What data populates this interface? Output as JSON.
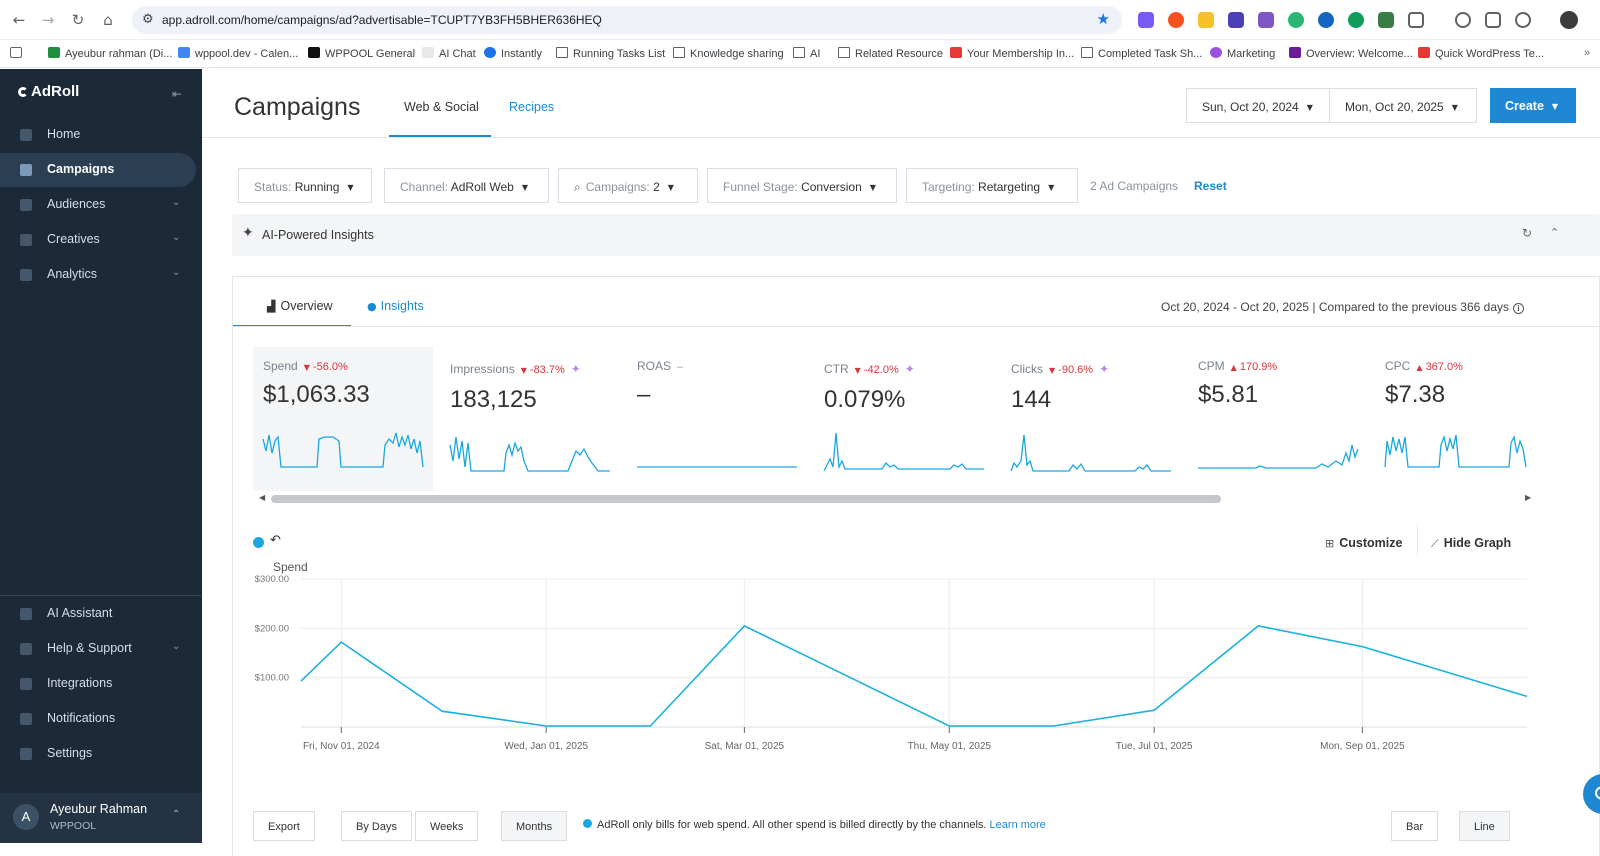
{
  "browser": {
    "url": "app.adroll.com/home/campaigns/ad?advertisable=TCUPT7YB3FH5BHER636HEQ",
    "bookmarks": [
      {
        "label": "Ayeubur rahman (Di...",
        "type": "sheet"
      },
      {
        "label": "wppool.dev - Calen...",
        "type": "calendar"
      },
      {
        "label": "WPPOOL General",
        "type": "notion"
      },
      {
        "label": "AI Chat",
        "type": "ai"
      },
      {
        "label": "Instantly",
        "type": "instantly"
      },
      {
        "label": "Running Tasks List",
        "type": "folder"
      },
      {
        "label": "Knowledge sharing",
        "type": "folder"
      },
      {
        "label": "AI",
        "type": "folder"
      },
      {
        "label": "Related Resource",
        "type": "folder"
      },
      {
        "label": "Your Membership In...",
        "type": "site"
      },
      {
        "label": "Completed Task Sh...",
        "type": "folder"
      },
      {
        "label": "Marketing",
        "type": "site"
      },
      {
        "label": "Overview: Welcome...",
        "type": "site"
      },
      {
        "label": "Quick WordPress Te...",
        "type": "site"
      }
    ]
  },
  "sidebar": {
    "brand": "AdRoll",
    "items": [
      {
        "label": "Home",
        "icon": "home-icon",
        "active": false,
        "chevron": false
      },
      {
        "label": "Campaigns",
        "icon": "megaphone-icon",
        "active": true,
        "chevron": false
      },
      {
        "label": "Audiences",
        "icon": "people-icon",
        "active": false,
        "chevron": true
      },
      {
        "label": "Creatives",
        "icon": "grid-icon",
        "active": false,
        "chevron": true
      },
      {
        "label": "Analytics",
        "icon": "analytics-icon",
        "active": false,
        "chevron": true
      }
    ],
    "bottom_items": [
      {
        "label": "AI Assistant",
        "icon": "sparkle-icon",
        "chevron": false
      },
      {
        "label": "Help & Support",
        "icon": "help-icon",
        "chevron": true
      },
      {
        "label": "Integrations",
        "icon": "plug-icon",
        "chevron": false
      },
      {
        "label": "Notifications",
        "icon": "bell-icon",
        "chevron": false
      },
      {
        "label": "Settings",
        "icon": "gear-icon",
        "chevron": false
      }
    ],
    "user": {
      "initial": "A",
      "name": "Ayeubur Rahman",
      "org": "WPPOOL"
    }
  },
  "header": {
    "title": "Campaigns",
    "tabs": [
      {
        "label": "Web & Social",
        "selected": true
      },
      {
        "label": "Recipes",
        "selected": false
      }
    ],
    "date_start": "Sun, Oct 20, 2024",
    "date_end": "Mon, Oct 20, 2025",
    "create_label": "Create"
  },
  "filters": [
    {
      "key": "Status: ",
      "value": "Running"
    },
    {
      "key": "Channel: ",
      "value": "AdRoll Web"
    },
    {
      "key": "Campaigns: ",
      "value": "2"
    },
    {
      "key": "Funnel Stage: ",
      "value": "Conversion"
    },
    {
      "key": "Targeting: ",
      "value": "Retargeting"
    }
  ],
  "filter_count": "2 Ad Campaigns",
  "reset_label": "Reset",
  "ai_insights_label": "AI-Powered Insights",
  "panel": {
    "tabs": [
      {
        "label": "Overview"
      },
      {
        "label": "Insights"
      }
    ],
    "range_text": "Oct 20, 2024 - Oct 20, 2025 | Compared to the previous 366 days"
  },
  "metrics": [
    {
      "name": "Spend",
      "change": "56.0%",
      "dir": "down",
      "value": "$1,063.33",
      "ai": false
    },
    {
      "name": "Impressions",
      "change": "-83.7%",
      "dir": "down",
      "value": "183,125",
      "ai": true
    },
    {
      "name": "ROAS",
      "change": "–",
      "dir": "neutral",
      "value": "–",
      "ai": false
    },
    {
      "name": "CTR",
      "change": "-42.0%",
      "dir": "down",
      "value": "0.079%",
      "ai": true
    },
    {
      "name": "Clicks",
      "change": "-90.6%",
      "dir": "down",
      "value": "144",
      "ai": true
    },
    {
      "name": "CPM",
      "change": "170.9%",
      "dir": "up",
      "value": "$5.81",
      "ai": false
    },
    {
      "name": "CPC",
      "change": "367.0%",
      "dir": "up",
      "value": "$7.38",
      "ai": false
    }
  ],
  "toolbar": {
    "customize_label": "Customize",
    "hide_graph_label": "Hide Graph"
  },
  "chart_data": {
    "type": "line",
    "title": "Spend",
    "y_ticks": [
      "$100.00",
      "$200.00",
      "$300.00"
    ],
    "ylim": [
      0,
      300
    ],
    "x_tick_labels": [
      "Fri, Nov 01, 2024",
      "Wed, Jan 01, 2025",
      "Sat, Mar 01, 2025",
      "Thu, May 01, 2025",
      "Tue, Jul 01, 2025",
      "Mon, Sep 01, 2025"
    ],
    "x": [
      "2024-10-20",
      "2024-11-01",
      "2024-12-01",
      "2025-01-01",
      "2025-02-01",
      "2025-03-01",
      "2025-04-01",
      "2025-05-01",
      "2025-06-01",
      "2025-07-01",
      "2025-08-01",
      "2025-09-01",
      "2025-10-20"
    ],
    "series": [
      {
        "values": [
          93,
          172,
          32,
          2,
          2,
          205,
          102,
          2,
          2,
          34,
          205,
          163,
          62
        ],
        "color": "#1ab0e0"
      }
    ],
    "grid": true
  },
  "bottom": {
    "export_label": "Export",
    "period_labels": [
      "By Days",
      "Weeks",
      "Months"
    ],
    "note": "AdRoll only bills for web spend. All other spend is billed directly by the channels. ",
    "learn_more": "Learn more",
    "chart_type_labels": [
      "Bar",
      "Line"
    ]
  }
}
